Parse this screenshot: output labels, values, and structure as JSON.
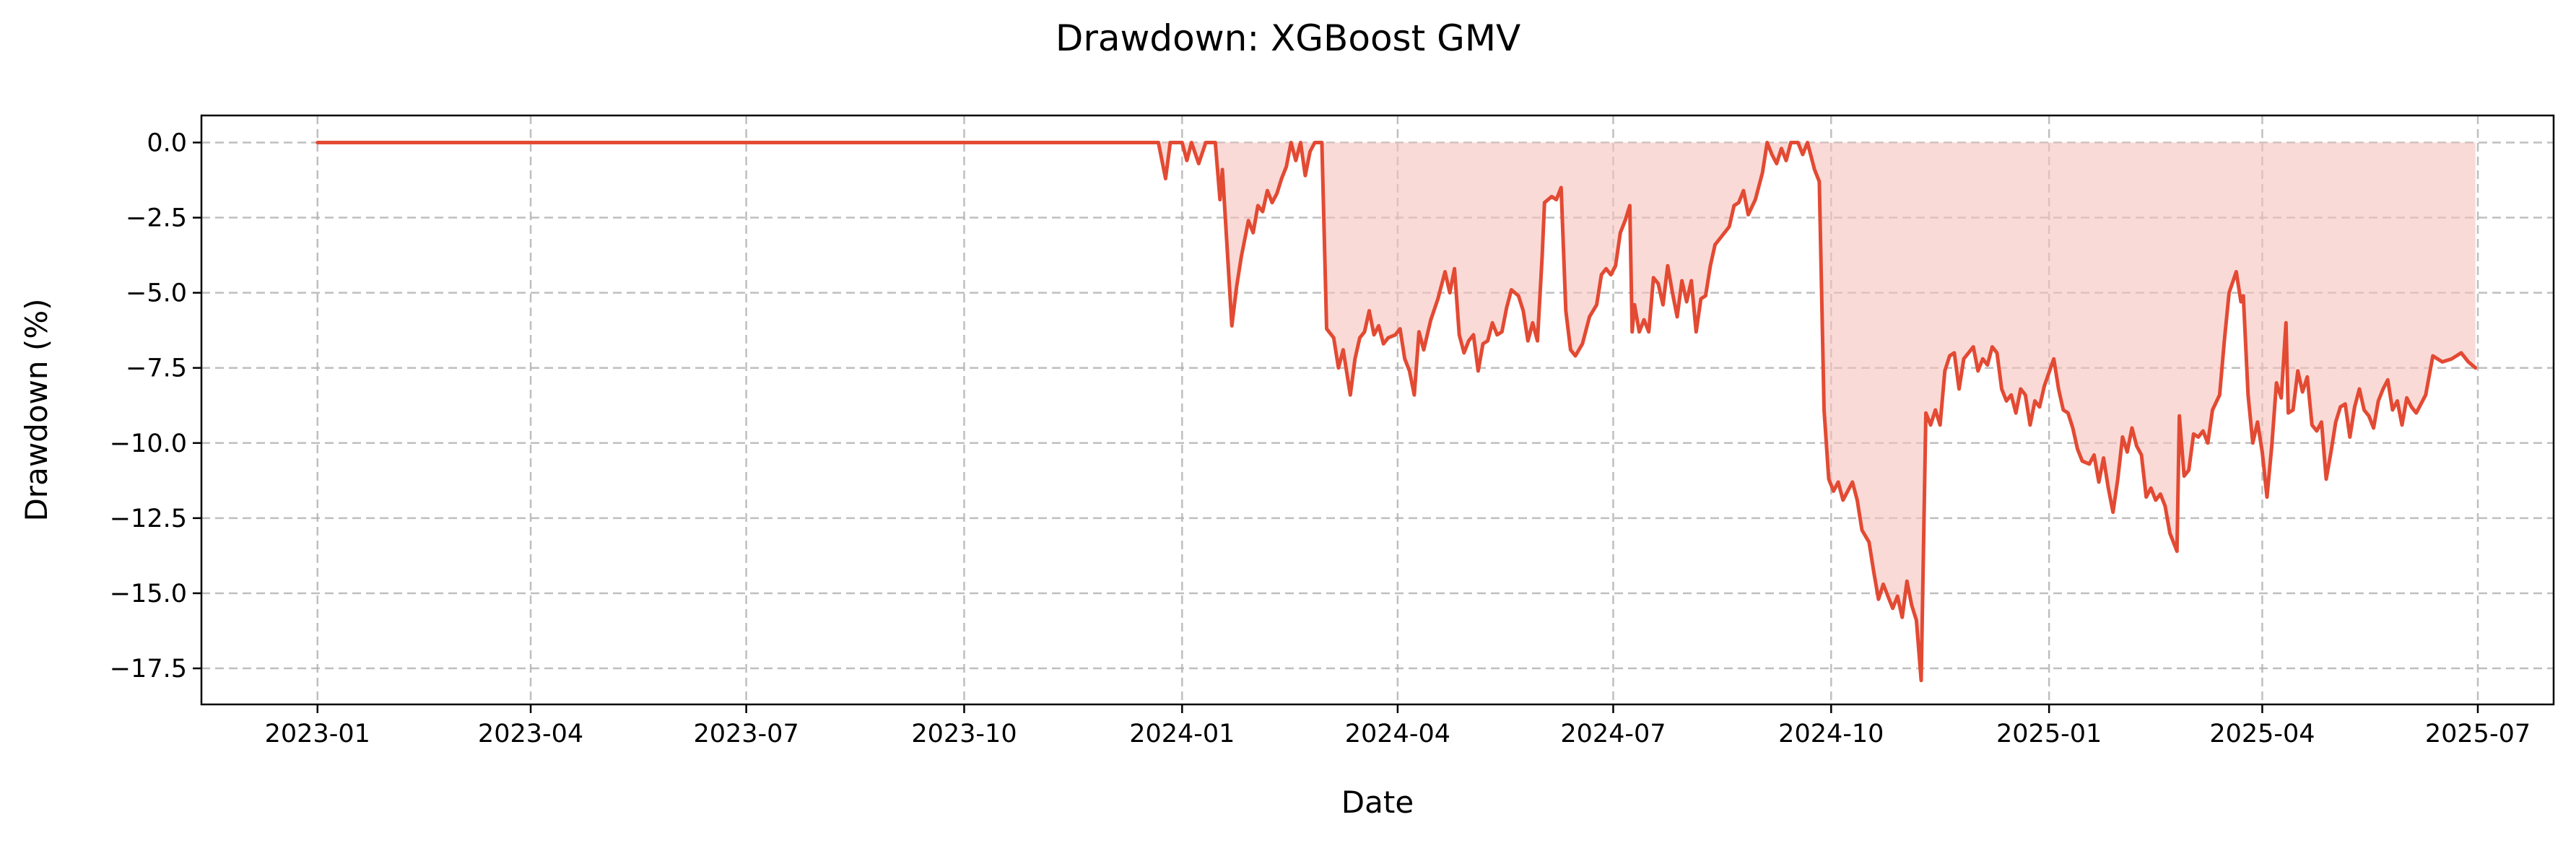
{
  "chart_data": {
    "type": "area",
    "title": "Drawdown: XGBoost GMV",
    "xlabel": "Date",
    "ylabel": "Drawdown (%)",
    "xlim": [
      "2022-11-13",
      "2025-08-02"
    ],
    "ylim": [
      -18.7,
      0.9
    ],
    "grid": true,
    "colors": {
      "line": "#e34a33",
      "fill": "#f6c2bd",
      "axes": "#000000",
      "grid": "#b0b0b0"
    },
    "x_ticks": [
      {
        "date": "2023-01-01",
        "label": "2023-01"
      },
      {
        "date": "2023-04-01",
        "label": "2023-04"
      },
      {
        "date": "2023-07-01",
        "label": "2023-07"
      },
      {
        "date": "2023-10-01",
        "label": "2023-10"
      },
      {
        "date": "2024-01-01",
        "label": "2024-01"
      },
      {
        "date": "2024-04-01",
        "label": "2024-04"
      },
      {
        "date": "2024-07-01",
        "label": "2024-07"
      },
      {
        "date": "2024-10-01",
        "label": "2024-10"
      },
      {
        "date": "2025-01-01",
        "label": "2025-01"
      },
      {
        "date": "2025-04-01",
        "label": "2025-04"
      },
      {
        "date": "2025-07-01",
        "label": "2025-07"
      }
    ],
    "y_ticks": [
      {
        "value": 0.0,
        "label": "0.0"
      },
      {
        "value": -2.5,
        "label": "−2.5"
      },
      {
        "value": -5.0,
        "label": "−5.0"
      },
      {
        "value": -7.5,
        "label": "−7.5"
      },
      {
        "value": -10.0,
        "label": "−10.0"
      },
      {
        "value": -12.5,
        "label": "−12.5"
      },
      {
        "value": -15.0,
        "label": "−15.0"
      },
      {
        "value": -17.5,
        "label": "−17.5"
      }
    ],
    "series": [
      {
        "points": [
          [
            "2023-01-01",
            0.0
          ],
          [
            "2023-12-22",
            0.0
          ],
          [
            "2023-12-25",
            -1.2
          ],
          [
            "2023-12-27",
            0.0
          ],
          [
            "2024-01-01",
            0.0
          ],
          [
            "2024-01-03",
            -0.6
          ],
          [
            "2024-01-05",
            0.0
          ],
          [
            "2024-01-08",
            -0.7
          ],
          [
            "2024-01-11",
            0.0
          ],
          [
            "2024-01-15",
            0.0
          ],
          [
            "2024-01-17",
            -1.9
          ],
          [
            "2024-01-18",
            -0.9
          ],
          [
            "2024-01-20",
            -3.5
          ],
          [
            "2024-01-22",
            -6.1
          ],
          [
            "2024-01-24",
            -4.8
          ],
          [
            "2024-01-26",
            -3.8
          ],
          [
            "2024-01-29",
            -2.6
          ],
          [
            "2024-01-31",
            -3.0
          ],
          [
            "2024-02-02",
            -2.1
          ],
          [
            "2024-02-04",
            -2.3
          ],
          [
            "2024-02-06",
            -1.6
          ],
          [
            "2024-02-08",
            -2.0
          ],
          [
            "2024-02-10",
            -1.7
          ],
          [
            "2024-02-12",
            -1.2
          ],
          [
            "2024-02-14",
            -0.8
          ],
          [
            "2024-02-16",
            0.0
          ],
          [
            "2024-02-18",
            -0.6
          ],
          [
            "2024-02-20",
            0.0
          ],
          [
            "2024-02-22",
            -1.1
          ],
          [
            "2024-02-24",
            -0.3
          ],
          [
            "2024-02-26",
            0.0
          ],
          [
            "2024-02-29",
            0.0
          ],
          [
            "2024-03-02",
            -6.2
          ],
          [
            "2024-03-05",
            -6.5
          ],
          [
            "2024-03-07",
            -7.5
          ],
          [
            "2024-03-09",
            -6.9
          ],
          [
            "2024-03-12",
            -8.4
          ],
          [
            "2024-03-14",
            -7.2
          ],
          [
            "2024-03-16",
            -6.5
          ],
          [
            "2024-03-18",
            -6.3
          ],
          [
            "2024-03-20",
            -5.6
          ],
          [
            "2024-03-22",
            -6.4
          ],
          [
            "2024-03-24",
            -6.1
          ],
          [
            "2024-03-26",
            -6.7
          ],
          [
            "2024-03-28",
            -6.5
          ],
          [
            "2024-03-31",
            -6.4
          ],
          [
            "2024-04-02",
            -6.2
          ],
          [
            "2024-04-04",
            -7.2
          ],
          [
            "2024-04-06",
            -7.6
          ],
          [
            "2024-04-08",
            -8.4
          ],
          [
            "2024-04-10",
            -6.3
          ],
          [
            "2024-04-12",
            -6.9
          ],
          [
            "2024-04-15",
            -5.9
          ],
          [
            "2024-04-18",
            -5.2
          ],
          [
            "2024-04-21",
            -4.3
          ],
          [
            "2024-04-23",
            -5.0
          ],
          [
            "2024-04-25",
            -4.2
          ],
          [
            "2024-04-27",
            -6.4
          ],
          [
            "2024-04-29",
            -7.0
          ],
          [
            "2024-05-01",
            -6.6
          ],
          [
            "2024-05-03",
            -6.4
          ],
          [
            "2024-05-05",
            -7.6
          ],
          [
            "2024-05-07",
            -6.7
          ],
          [
            "2024-05-09",
            -6.6
          ],
          [
            "2024-05-11",
            -6.0
          ],
          [
            "2024-05-13",
            -6.4
          ],
          [
            "2024-05-15",
            -6.3
          ],
          [
            "2024-05-17",
            -5.5
          ],
          [
            "2024-05-19",
            -4.9
          ],
          [
            "2024-05-22",
            -5.1
          ],
          [
            "2024-05-24",
            -5.6
          ],
          [
            "2024-05-26",
            -6.6
          ],
          [
            "2024-05-28",
            -6.0
          ],
          [
            "2024-05-30",
            -6.6
          ],
          [
            "2024-06-01",
            -3.8
          ],
          [
            "2024-06-02",
            -2.0
          ],
          [
            "2024-06-05",
            -1.8
          ],
          [
            "2024-06-07",
            -1.9
          ],
          [
            "2024-06-09",
            -1.5
          ],
          [
            "2024-06-11",
            -5.6
          ],
          [
            "2024-06-13",
            -6.9
          ],
          [
            "2024-06-15",
            -7.1
          ],
          [
            "2024-06-18",
            -6.7
          ],
          [
            "2024-06-21",
            -5.8
          ],
          [
            "2024-06-24",
            -5.4
          ],
          [
            "2024-06-26",
            -4.4
          ],
          [
            "2024-06-28",
            -4.2
          ],
          [
            "2024-06-30",
            -4.4
          ],
          [
            "2024-07-02",
            -4.1
          ],
          [
            "2024-07-04",
            -3.0
          ],
          [
            "2024-07-06",
            -2.6
          ],
          [
            "2024-07-08",
            -2.1
          ],
          [
            "2024-07-09",
            -6.3
          ],
          [
            "2024-07-10",
            -5.4
          ],
          [
            "2024-07-12",
            -6.3
          ],
          [
            "2024-07-14",
            -5.9
          ],
          [
            "2024-07-16",
            -6.3
          ],
          [
            "2024-07-18",
            -4.5
          ],
          [
            "2024-07-20",
            -4.7
          ],
          [
            "2024-07-22",
            -5.4
          ],
          [
            "2024-07-24",
            -4.1
          ],
          [
            "2024-07-26",
            -5.0
          ],
          [
            "2024-07-28",
            -5.8
          ],
          [
            "2024-07-30",
            -4.6
          ],
          [
            "2024-08-01",
            -5.3
          ],
          [
            "2024-08-03",
            -4.6
          ],
          [
            "2024-08-05",
            -6.3
          ],
          [
            "2024-08-07",
            -5.2
          ],
          [
            "2024-08-09",
            -5.1
          ],
          [
            "2024-08-11",
            -4.1
          ],
          [
            "2024-08-13",
            -3.4
          ],
          [
            "2024-08-16",
            -3.1
          ],
          [
            "2024-08-19",
            -2.8
          ],
          [
            "2024-08-21",
            -2.1
          ],
          [
            "2024-08-23",
            -2.0
          ],
          [
            "2024-08-25",
            -1.6
          ],
          [
            "2024-08-27",
            -2.4
          ],
          [
            "2024-08-30",
            -1.9
          ],
          [
            "2024-09-02",
            -1.0
          ],
          [
            "2024-09-04",
            0.0
          ],
          [
            "2024-09-06",
            -0.4
          ],
          [
            "2024-09-08",
            -0.7
          ],
          [
            "2024-09-10",
            -0.2
          ],
          [
            "2024-09-12",
            -0.6
          ],
          [
            "2024-09-14",
            0.0
          ],
          [
            "2024-09-17",
            0.0
          ],
          [
            "2024-09-19",
            -0.4
          ],
          [
            "2024-09-21",
            0.0
          ],
          [
            "2024-09-24",
            -0.9
          ],
          [
            "2024-09-26",
            -1.3
          ],
          [
            "2024-09-28",
            -8.9
          ],
          [
            "2024-09-30",
            -11.2
          ],
          [
            "2024-10-02",
            -11.6
          ],
          [
            "2024-10-04",
            -11.3
          ],
          [
            "2024-10-06",
            -11.9
          ],
          [
            "2024-10-08",
            -11.6
          ],
          [
            "2024-10-10",
            -11.3
          ],
          [
            "2024-10-12",
            -11.9
          ],
          [
            "2024-10-14",
            -12.9
          ],
          [
            "2024-10-17",
            -13.3
          ],
          [
            "2024-10-19",
            -14.3
          ],
          [
            "2024-10-21",
            -15.2
          ],
          [
            "2024-10-23",
            -14.7
          ],
          [
            "2024-10-25",
            -15.1
          ],
          [
            "2024-10-27",
            -15.5
          ],
          [
            "2024-10-29",
            -15.1
          ],
          [
            "2024-10-31",
            -15.8
          ],
          [
            "2024-11-02",
            -14.6
          ],
          [
            "2024-11-04",
            -15.4
          ],
          [
            "2024-11-06",
            -15.9
          ],
          [
            "2024-11-08",
            -17.9
          ],
          [
            "2024-11-10",
            -9.0
          ],
          [
            "2024-11-12",
            -9.4
          ],
          [
            "2024-11-14",
            -8.9
          ],
          [
            "2024-11-16",
            -9.4
          ],
          [
            "2024-11-18",
            -7.6
          ],
          [
            "2024-11-20",
            -7.1
          ],
          [
            "2024-11-22",
            -7.0
          ],
          [
            "2024-11-24",
            -8.2
          ],
          [
            "2024-11-26",
            -7.2
          ],
          [
            "2024-11-28",
            -7.0
          ],
          [
            "2024-11-30",
            -6.8
          ],
          [
            "2024-12-02",
            -7.6
          ],
          [
            "2024-12-04",
            -7.2
          ],
          [
            "2024-12-06",
            -7.4
          ],
          [
            "2024-12-08",
            -6.8
          ],
          [
            "2024-12-10",
            -7.0
          ],
          [
            "2024-12-12",
            -8.2
          ],
          [
            "2024-12-14",
            -8.6
          ],
          [
            "2024-12-16",
            -8.4
          ],
          [
            "2024-12-18",
            -9.0
          ],
          [
            "2024-12-20",
            -8.2
          ],
          [
            "2024-12-22",
            -8.4
          ],
          [
            "2024-12-24",
            -9.4
          ],
          [
            "2024-12-26",
            -8.6
          ],
          [
            "2024-12-28",
            -8.8
          ],
          [
            "2024-12-30",
            -8.1
          ],
          [
            "2025-01-03",
            -7.2
          ],
          [
            "2025-01-05",
            -8.2
          ],
          [
            "2025-01-07",
            -8.9
          ],
          [
            "2025-01-09",
            -9.0
          ],
          [
            "2025-01-11",
            -9.5
          ],
          [
            "2025-01-13",
            -10.2
          ],
          [
            "2025-01-15",
            -10.6
          ],
          [
            "2025-01-18",
            -10.7
          ],
          [
            "2025-01-20",
            -10.4
          ],
          [
            "2025-01-22",
            -11.3
          ],
          [
            "2025-01-24",
            -10.5
          ],
          [
            "2025-01-26",
            -11.5
          ],
          [
            "2025-01-28",
            -12.3
          ],
          [
            "2025-01-30",
            -11.2
          ],
          [
            "2025-02-01",
            -9.8
          ],
          [
            "2025-02-03",
            -10.3
          ],
          [
            "2025-02-05",
            -9.5
          ],
          [
            "2025-02-07",
            -10.1
          ],
          [
            "2025-02-09",
            -10.4
          ],
          [
            "2025-02-11",
            -11.8
          ],
          [
            "2025-02-13",
            -11.5
          ],
          [
            "2025-02-15",
            -11.9
          ],
          [
            "2025-02-17",
            -11.7
          ],
          [
            "2025-02-19",
            -12.1
          ],
          [
            "2025-02-21",
            -13.0
          ],
          [
            "2025-02-24",
            -13.6
          ],
          [
            "2025-02-25",
            -9.1
          ],
          [
            "2025-02-27",
            -11.1
          ],
          [
            "2025-03-01",
            -10.9
          ],
          [
            "2025-03-03",
            -9.7
          ],
          [
            "2025-03-05",
            -9.8
          ],
          [
            "2025-03-07",
            -9.6
          ],
          [
            "2025-03-09",
            -10.0
          ],
          [
            "2025-03-11",
            -8.9
          ],
          [
            "2025-03-14",
            -8.4
          ],
          [
            "2025-03-16",
            -6.6
          ],
          [
            "2025-03-18",
            -5.0
          ],
          [
            "2025-03-21",
            -4.3
          ],
          [
            "2025-03-23",
            -5.3
          ],
          [
            "2025-03-24",
            -5.1
          ],
          [
            "2025-03-26",
            -8.4
          ],
          [
            "2025-03-28",
            -10.0
          ],
          [
            "2025-03-30",
            -9.3
          ],
          [
            "2025-04-01",
            -10.3
          ],
          [
            "2025-04-03",
            -11.8
          ],
          [
            "2025-04-05",
            -10.1
          ],
          [
            "2025-04-07",
            -8.0
          ],
          [
            "2025-04-09",
            -8.5
          ],
          [
            "2025-04-11",
            -6.0
          ],
          [
            "2025-04-12",
            -9.0
          ],
          [
            "2025-04-14",
            -8.9
          ],
          [
            "2025-04-16",
            -7.6
          ],
          [
            "2025-04-18",
            -8.3
          ],
          [
            "2025-04-20",
            -7.8
          ],
          [
            "2025-04-22",
            -9.4
          ],
          [
            "2025-04-24",
            -9.6
          ],
          [
            "2025-04-26",
            -9.3
          ],
          [
            "2025-04-28",
            -11.2
          ],
          [
            "2025-04-30",
            -10.3
          ],
          [
            "2025-05-02",
            -9.3
          ],
          [
            "2025-05-04",
            -8.8
          ],
          [
            "2025-05-06",
            -8.7
          ],
          [
            "2025-05-08",
            -9.8
          ],
          [
            "2025-05-10",
            -8.8
          ],
          [
            "2025-05-12",
            -8.2
          ],
          [
            "2025-05-14",
            -8.9
          ],
          [
            "2025-05-16",
            -9.1
          ],
          [
            "2025-05-18",
            -9.5
          ],
          [
            "2025-05-20",
            -8.6
          ],
          [
            "2025-05-22",
            -8.2
          ],
          [
            "2025-05-24",
            -7.9
          ],
          [
            "2025-05-26",
            -8.9
          ],
          [
            "2025-05-28",
            -8.6
          ],
          [
            "2025-05-30",
            -9.4
          ],
          [
            "2025-06-01",
            -8.5
          ],
          [
            "2025-06-03",
            -8.8
          ],
          [
            "2025-06-05",
            -9.0
          ],
          [
            "2025-06-09",
            -8.4
          ],
          [
            "2025-06-12",
            -7.1
          ],
          [
            "2025-06-16",
            -7.3
          ],
          [
            "2025-06-20",
            -7.2
          ],
          [
            "2025-06-24",
            -7.0
          ],
          [
            "2025-06-27",
            -7.3
          ],
          [
            "2025-06-30",
            -7.5
          ]
        ]
      }
    ]
  }
}
